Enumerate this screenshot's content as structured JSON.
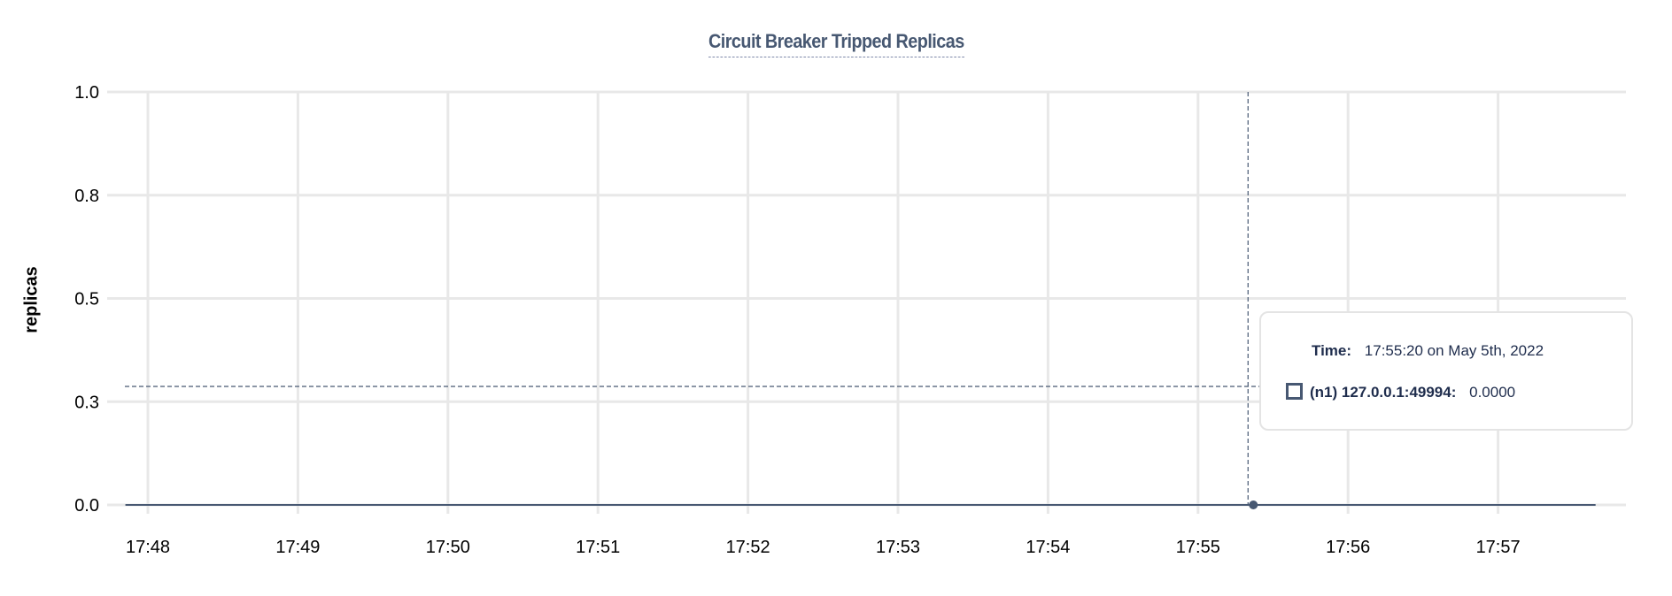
{
  "chart_data": {
    "type": "line",
    "title": "Circuit Breaker Tripped Replicas",
    "xlabel": "",
    "ylabel": "replicas",
    "y_ticks": [
      "0.0",
      "0.3",
      "0.5",
      "0.8",
      "1.0"
    ],
    "y_tick_values": [
      0,
      0.25,
      0.5,
      0.75,
      1.0
    ],
    "ylim": [
      0,
      1.0
    ],
    "x_ticks": [
      "17:48",
      "17:49",
      "17:50",
      "17:51",
      "17:52",
      "17:53",
      "17:54",
      "17:55",
      "17:56",
      "17:57"
    ],
    "xlim": [
      "17:47:51",
      "17:57:39"
    ],
    "grid": true,
    "series": [
      {
        "name": "(n1) 127.0.0.1:49994",
        "color": "#475872",
        "x": [
          "17:47:51",
          "17:57:39"
        ],
        "y": [
          0,
          0
        ]
      }
    ],
    "hover": {
      "x": "17:55:20",
      "y": 0
    }
  },
  "tooltip": {
    "time_label": "Time:",
    "time_value": "17:55:20 on May 5th, 2022",
    "series_label": "(n1) 127.0.0.1:49994:",
    "series_value": "0.0000"
  },
  "colors": {
    "title": "#475872",
    "series": "#475872",
    "grid": "#e8e8e8"
  }
}
